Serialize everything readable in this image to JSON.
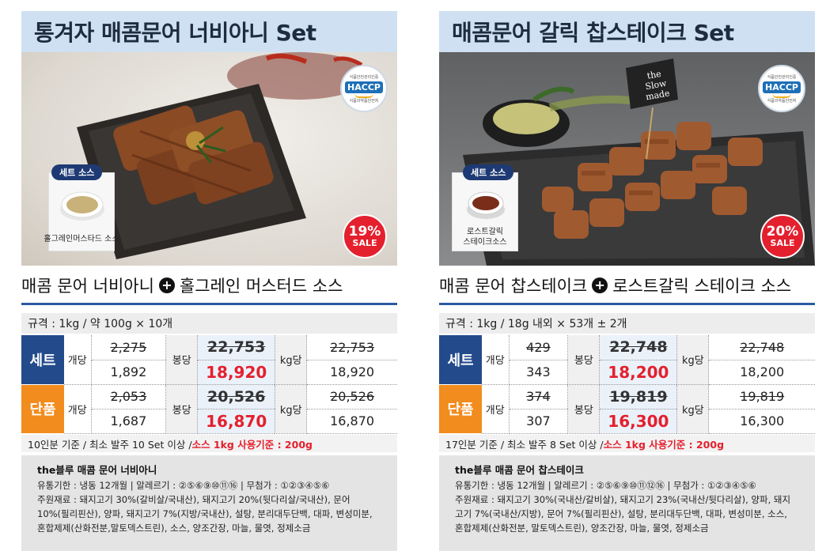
{
  "products": [
    {
      "title": "통겨자 매콤문어 너비아니 Set",
      "haccp": {
        "top": "식품안전관리인증",
        "badge": "HACCP",
        "bottom": "식품의약품안전처"
      },
      "sale": {
        "percent": "19%",
        "label": "SALE"
      },
      "sauce_tag": "세트 소스",
      "sauce_name": "홀그레인머스타드 소스",
      "menu_name": "매콤 문어 너비아니",
      "sauce_full": "홀그레인 머스터드 소스",
      "spec": "규격 : 1kg / 약 100g × 10개",
      "set_label": "세트",
      "single_label": "단품",
      "each_label": "개당",
      "bong_label": "봉당",
      "kg_label": "kg당",
      "set_each_old": "2,275",
      "set_each_new": "1,892",
      "set_bong_old": "22,753",
      "set_bong_new": "18,920",
      "set_kg_old": "22,753",
      "set_kg_new": "18,920",
      "single_each_old": "2,053",
      "single_each_new": "1,687",
      "single_bong_old": "20,526",
      "single_bong_new": "16,870",
      "single_kg_old": "20,526",
      "single_kg_new": "16,870",
      "note_main": "10인분 기준 / 최소 발주 10 Set 이상 / ",
      "note_red": "소스 1kg 사용기준 : 200g",
      "info_name": "the블루 매콤 문어 너비아니",
      "info_lines": [
        "유통기한 : 냉동 12개월 | 알레르기 : ②⑤⑥⑨⑩⑪⑯ | 무첨가 : ①②③④⑤⑥",
        "주원재료 : 돼지고기 30%(갈비살/국내산), 돼지고기 20%(뒷다리살/국내산), 문어",
        "10%(필리핀산), 양파, 돼지고기 7%(지방/국내산), 설탕, 분리대두단백, 대파, 변성미분,",
        "혼합제제(산화전분,말토덱스트린), 소스, 양조간장, 마늘, 물엿, 정제소금"
      ]
    },
    {
      "title": "매콤문어 갈릭 찹스테이크 Set",
      "haccp": {
        "top": "식품안전관리인증",
        "badge": "HACCP",
        "bottom": "식품의약품안전처"
      },
      "sale": {
        "percent": "20%",
        "label": "SALE"
      },
      "flag": [
        "the",
        "Slow",
        "made"
      ],
      "sauce_tag": "세트 소스",
      "sauce_name": "로스트갈릭 스테이크소스",
      "sauce_name_1": "로스트갈릭",
      "sauce_name_2": "스테이크소스",
      "menu_name": "매콤 문어 찹스테이크",
      "sauce_full": "로스트갈릭 스테이크 소스",
      "spec": "규격 : 1kg / 18g 내외 × 53개 ± 2개",
      "set_label": "세트",
      "single_label": "단품",
      "each_label": "개당",
      "bong_label": "봉당",
      "kg_label": "kg당",
      "set_each_old": "429",
      "set_each_new": "343",
      "set_bong_old": "22,748",
      "set_bong_new": "18,200",
      "set_kg_old": "22,748",
      "set_kg_new": "18,200",
      "single_each_old": "374",
      "single_each_new": "307",
      "single_bong_old": "19,819",
      "single_bong_new": "16,300",
      "single_kg_old": "19,819",
      "single_kg_new": "16,300",
      "note_main": "17인분 기준 / 최소 발주 8 Set 이상 / ",
      "note_red": "소스 1kg 사용기준 : 200g",
      "info_name": "the블루 매콤 문어 찹스테이크",
      "info_lines": [
        "유통기한 : 냉동 12개월 | 알레르기 : ②⑤⑥⑨⑩⑪⑫⑯ | 무첨가 : ①②③④⑤⑥",
        "주원재료 : 돼지고기 30%(국내산/갈비살), 돼지고기 23%(국내산/뒷다리살), 양파, 돼지",
        "고기 7%(국내산/지방), 문어 7%(필리핀산), 설탕, 분리대두단백, 대파, 변성미분, 소스,",
        "혼합제제(산화전분, 말토덱스트린), 양조간장, 마늘, 물엿, 정제소금"
      ]
    }
  ],
  "colors": {
    "title_bg": "#cfe0f2",
    "set": "#234b8c",
    "single": "#f28c1e",
    "sale": "#e4202e",
    "rule": "#2a5aa0"
  }
}
